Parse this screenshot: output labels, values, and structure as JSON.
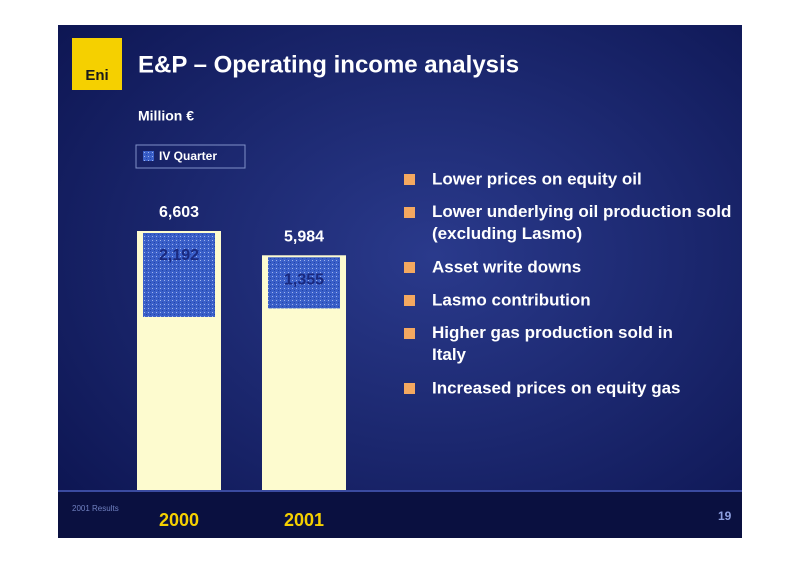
{
  "header": {
    "title": "E&P – Operating income analysis",
    "logo": "Eni"
  },
  "chart_data": {
    "type": "bar",
    "unit_label": "Million €",
    "categories": [
      "2000",
      "2001"
    ],
    "values": [
      6603,
      5984
    ],
    "value_labels": [
      "6,603",
      "5,984"
    ],
    "color": "#fdfbcf",
    "quarter": {
      "name": "IV Quarter",
      "color": "#3a5fc8",
      "values": [
        2192,
        1355
      ],
      "value_labels": [
        "2,192",
        "1,355"
      ]
    }
  },
  "bullets": [
    "Lower prices on equity oil",
    "Lower underlying oil production sold (excluding Lasmo)",
    "Asset write downs",
    "Lasmo contribution",
    "Higher gas production sold in Italy",
    "Increased prices on equity gas"
  ],
  "footer": {
    "caption": "2001 Results",
    "page": "19"
  }
}
